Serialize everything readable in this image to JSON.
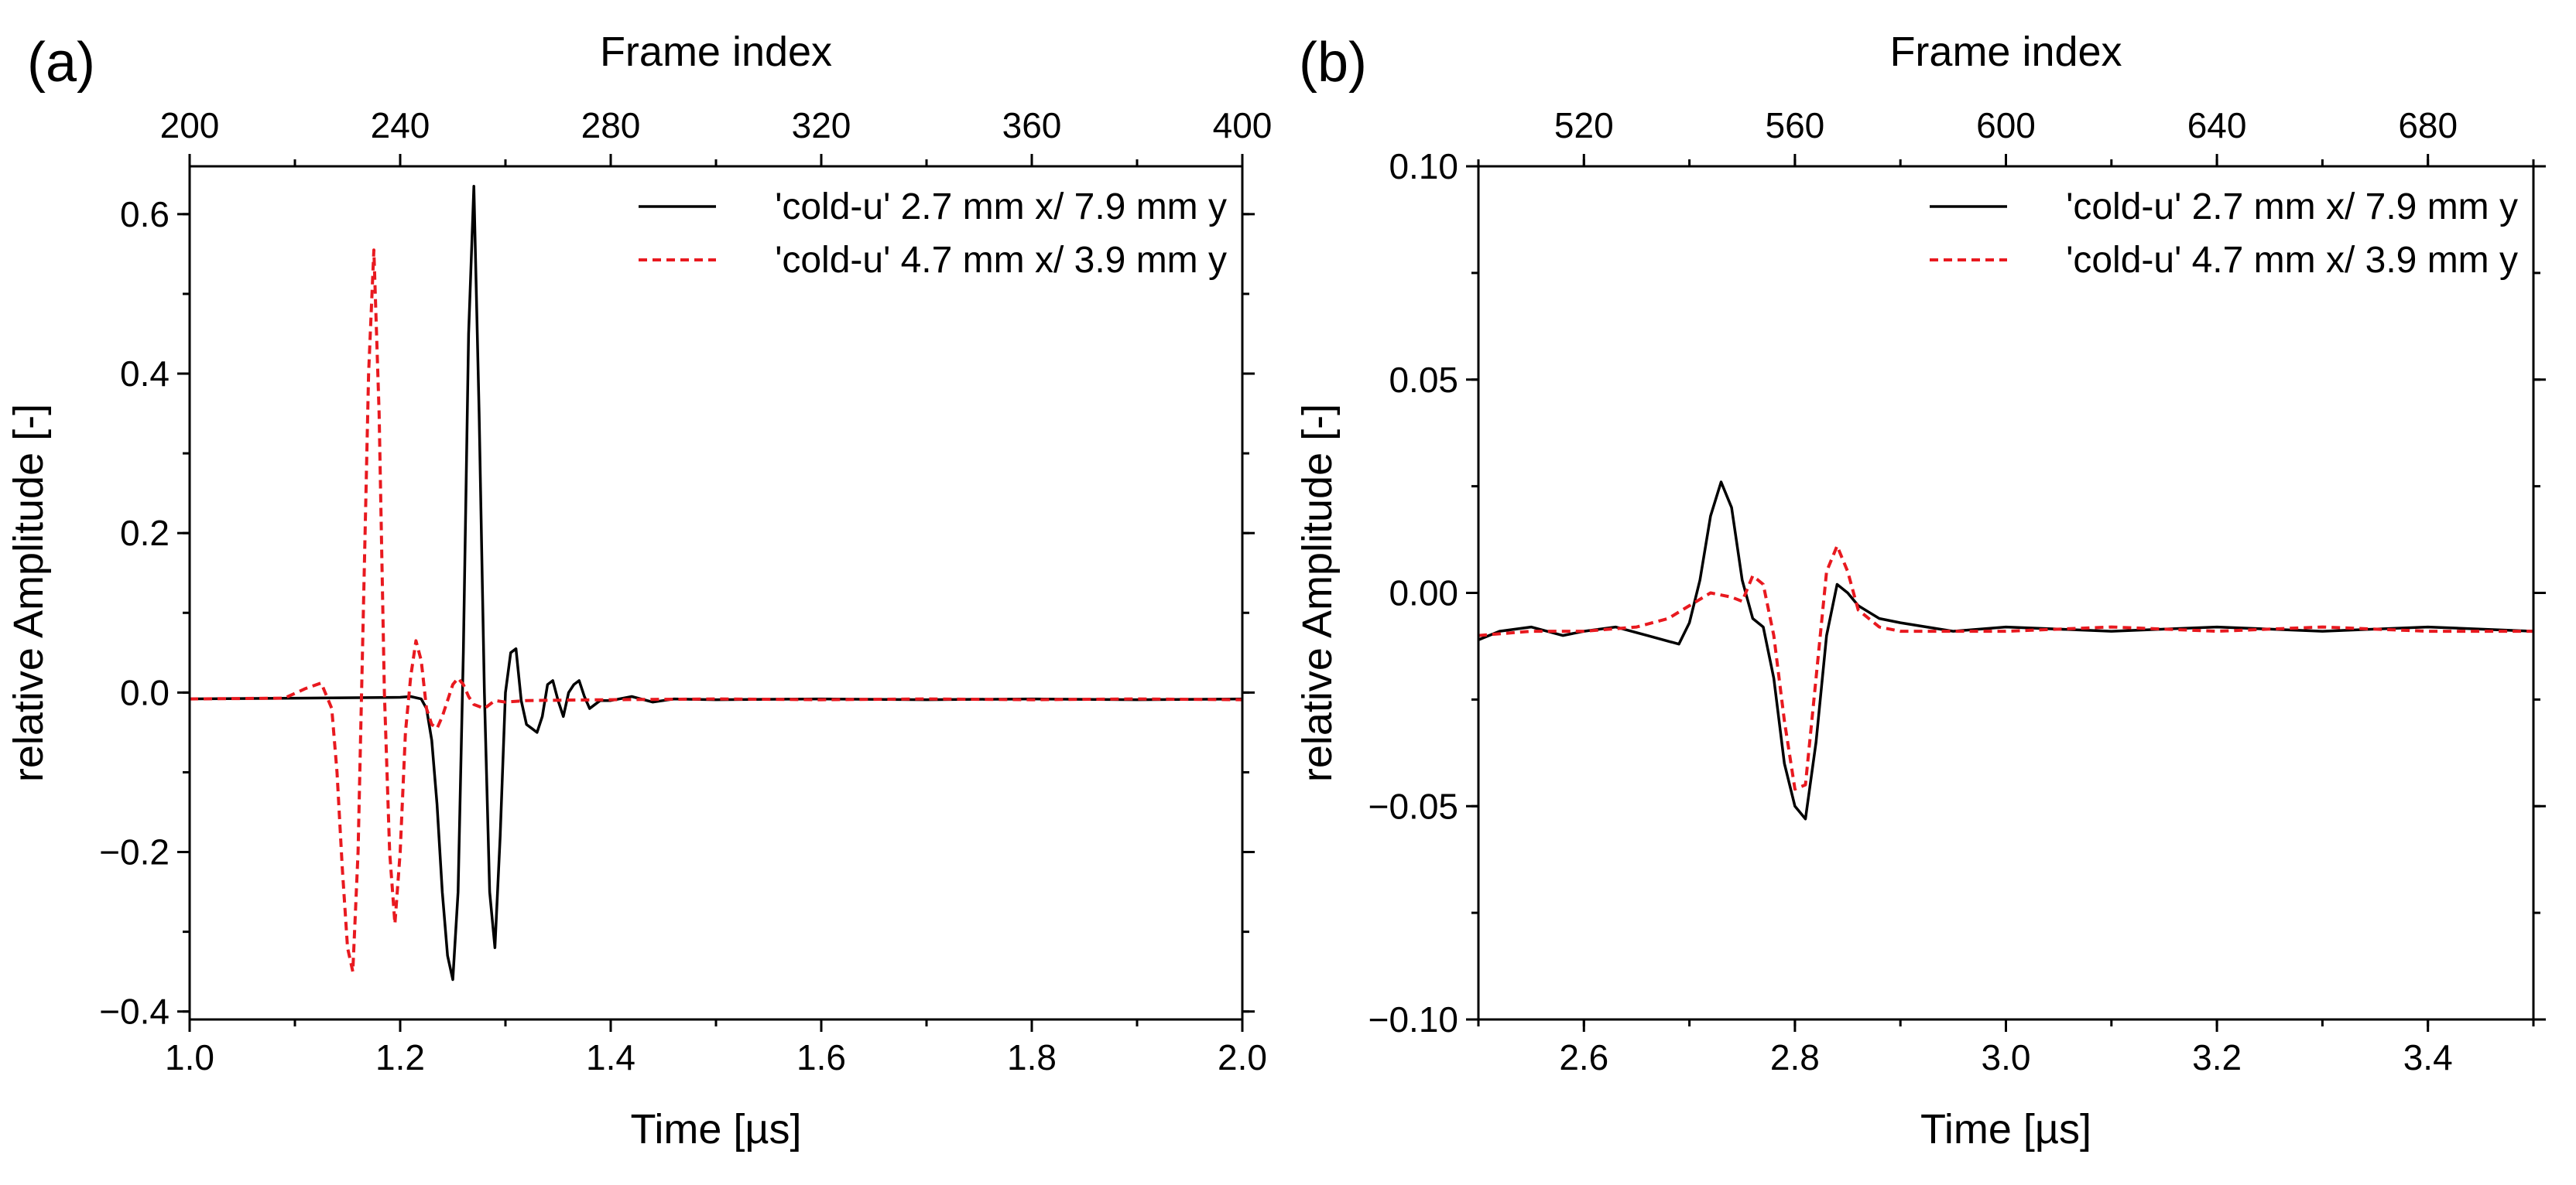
{
  "chart_data": [
    {
      "panel_label": "(a)",
      "type": "line",
      "xlabel": "Time [µs]",
      "ylabel": "relative Amplitude [-]",
      "x2label": "Frame index",
      "xlim": [
        1.0,
        2.0
      ],
      "ylim": [
        -0.41,
        0.66
      ],
      "x2lim": [
        200,
        400
      ],
      "xticks": [
        "1.0",
        "1.2",
        "1.4",
        "1.6",
        "1.8",
        "2.0"
      ],
      "xtick_values": [
        1.0,
        1.2,
        1.4,
        1.6,
        1.8,
        2.0
      ],
      "yticks": [
        "−0.4",
        "−0.2",
        "0.0",
        "0.2",
        "0.4",
        "0.6"
      ],
      "ytick_values": [
        -0.4,
        -0.2,
        0.0,
        0.2,
        0.4,
        0.6
      ],
      "x2ticks": [
        "200",
        "240",
        "280",
        "320",
        "360",
        "400"
      ],
      "x2tick_values": [
        200,
        240,
        280,
        320,
        360,
        400
      ],
      "legend_position": "top-right",
      "series": [
        {
          "name": "'cold-u' 2.7 mm x/ 7.9 mm y",
          "color": "#000000",
          "style": "solid",
          "x": [
            1.0,
            1.1,
            1.2,
            1.21,
            1.22,
            1.225,
            1.23,
            1.235,
            1.24,
            1.245,
            1.25,
            1.255,
            1.26,
            1.265,
            1.27,
            1.275,
            1.28,
            1.285,
            1.29,
            1.295,
            1.3,
            1.305,
            1.31,
            1.315,
            1.32,
            1.325,
            1.33,
            1.335,
            1.34,
            1.345,
            1.35,
            1.355,
            1.36,
            1.365,
            1.37,
            1.375,
            1.38,
            1.385,
            1.39,
            1.4,
            1.42,
            1.44,
            1.46,
            1.5,
            1.6,
            1.7,
            1.8,
            1.9,
            2.0
          ],
          "y": [
            -0.008,
            -0.007,
            -0.006,
            -0.005,
            -0.008,
            -0.02,
            -0.06,
            -0.14,
            -0.25,
            -0.33,
            -0.36,
            -0.25,
            0.05,
            0.45,
            0.635,
            0.35,
            0.0,
            -0.25,
            -0.32,
            -0.18,
            0.0,
            0.05,
            0.055,
            -0.01,
            -0.04,
            -0.045,
            -0.05,
            -0.03,
            0.01,
            0.015,
            -0.01,
            -0.03,
            0.0,
            0.01,
            0.015,
            -0.005,
            -0.02,
            -0.015,
            -0.01,
            -0.01,
            -0.005,
            -0.012,
            -0.008,
            -0.009,
            -0.008,
            -0.009,
            -0.008,
            -0.009,
            -0.008
          ]
        },
        {
          "name": "'cold-u' 4.7 mm x/ 3.9 mm y",
          "color": "#e8191f",
          "style": "dashed",
          "x": [
            1.0,
            1.09,
            1.11,
            1.125,
            1.135,
            1.14,
            1.145,
            1.15,
            1.155,
            1.16,
            1.165,
            1.17,
            1.175,
            1.18,
            1.185,
            1.19,
            1.195,
            1.2,
            1.205,
            1.21,
            1.215,
            1.22,
            1.225,
            1.23,
            1.235,
            1.24,
            1.245,
            1.25,
            1.255,
            1.26,
            1.265,
            1.27,
            1.28,
            1.29,
            1.3,
            1.32,
            1.4,
            1.5,
            1.6,
            1.7,
            1.8,
            1.9,
            2.0
          ],
          "y": [
            -0.008,
            -0.007,
            0.005,
            0.012,
            -0.02,
            -0.1,
            -0.22,
            -0.32,
            -0.35,
            -0.2,
            0.1,
            0.4,
            0.555,
            0.35,
            0.0,
            -0.2,
            -0.29,
            -0.2,
            -0.05,
            0.02,
            0.065,
            0.04,
            -0.02,
            -0.04,
            -0.045,
            -0.03,
            -0.01,
            0.01,
            0.018,
            0.01,
            -0.005,
            -0.015,
            -0.02,
            -0.01,
            -0.012,
            -0.01,
            -0.009,
            -0.008,
            -0.009,
            -0.008,
            -0.009,
            -0.008,
            -0.009
          ]
        }
      ]
    },
    {
      "panel_label": "(b)",
      "type": "line",
      "xlabel": "Time [µs]",
      "ylabel": "relative Amplitude [-]",
      "x2label": "Frame index",
      "xlim": [
        2.5,
        3.5
      ],
      "ylim": [
        -0.1,
        0.1
      ],
      "x2lim": [
        500,
        700
      ],
      "xticks": [
        "2.6",
        "2.8",
        "3.0",
        "3.2",
        "3.4"
      ],
      "xtick_values": [
        2.6,
        2.8,
        3.0,
        3.2,
        3.4
      ],
      "yticks": [
        "−0.10",
        "−0.05",
        "0.00",
        "0.05",
        "0.10"
      ],
      "ytick_values": [
        -0.1,
        -0.05,
        0.0,
        0.05,
        0.1
      ],
      "x2ticks": [
        "520",
        "560",
        "600",
        "640",
        "680"
      ],
      "x2tick_values": [
        520,
        560,
        600,
        640,
        680
      ],
      "legend_position": "top-right",
      "series": [
        {
          "name": "'cold-u' 2.7 mm x/ 7.9 mm y",
          "color": "#000000",
          "style": "solid",
          "x": [
            2.5,
            2.52,
            2.55,
            2.58,
            2.6,
            2.63,
            2.66,
            2.69,
            2.7,
            2.71,
            2.72,
            2.73,
            2.74,
            2.75,
            2.76,
            2.77,
            2.78,
            2.79,
            2.8,
            2.81,
            2.82,
            2.83,
            2.84,
            2.85,
            2.86,
            2.88,
            2.9,
            2.95,
            3.0,
            3.1,
            3.2,
            3.3,
            3.4,
            3.5
          ],
          "y": [
            -0.011,
            -0.009,
            -0.008,
            -0.01,
            -0.009,
            -0.008,
            -0.01,
            -0.012,
            -0.007,
            0.003,
            0.018,
            0.026,
            0.02,
            0.003,
            -0.006,
            -0.008,
            -0.02,
            -0.04,
            -0.05,
            -0.053,
            -0.035,
            -0.01,
            0.002,
            0.0,
            -0.003,
            -0.006,
            -0.007,
            -0.009,
            -0.008,
            -0.009,
            -0.008,
            -0.009,
            -0.008,
            -0.009
          ]
        },
        {
          "name": "'cold-u' 4.7 mm x/ 3.9 mm y",
          "color": "#e8191f",
          "style": "dashed",
          "x": [
            2.5,
            2.55,
            2.6,
            2.65,
            2.68,
            2.7,
            2.72,
            2.74,
            2.75,
            2.76,
            2.77,
            2.78,
            2.79,
            2.8,
            2.81,
            2.82,
            2.83,
            2.84,
            2.85,
            2.86,
            2.88,
            2.9,
            3.0,
            3.1,
            3.2,
            3.3,
            3.4,
            3.5
          ],
          "y": [
            -0.01,
            -0.009,
            -0.009,
            -0.008,
            -0.006,
            -0.003,
            0.0,
            -0.001,
            -0.002,
            0.004,
            0.002,
            -0.01,
            -0.03,
            -0.046,
            -0.045,
            -0.02,
            0.005,
            0.011,
            0.005,
            -0.004,
            -0.008,
            -0.009,
            -0.009,
            -0.008,
            -0.009,
            -0.008,
            -0.009,
            -0.009
          ]
        }
      ]
    }
  ]
}
